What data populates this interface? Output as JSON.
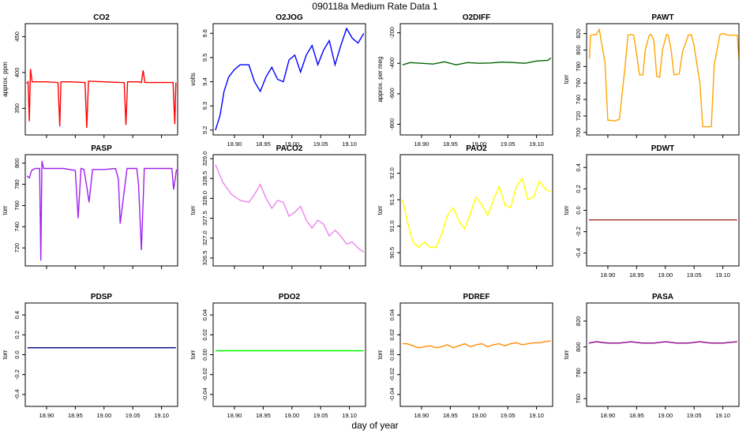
{
  "figure": {
    "title": "090118a   Medium Rate Data 1",
    "xlabel": "day of year"
  },
  "chart_data": [
    {
      "type": "line",
      "title": "CO2",
      "ylabel": "approx. ppm",
      "color": "#ff0000",
      "xlim": [
        18.863,
        19.128
      ],
      "ylim": [
        313,
        468
      ],
      "yticks": [
        350,
        400,
        450
      ],
      "xticks": [],
      "series": {
        "x": [
          18.865,
          18.868,
          18.87,
          18.872,
          18.875,
          18.9,
          18.92,
          18.923,
          18.925,
          18.94,
          18.967,
          18.97,
          18.973,
          19.0,
          19.03,
          19.035,
          19.038,
          19.041,
          19.06,
          19.065,
          19.068,
          19.071,
          19.09,
          19.12,
          19.123,
          19.125
        ],
        "y": [
          385,
          387,
          332,
          405,
          387,
          387,
          386,
          325,
          387,
          387,
          386,
          323,
          388,
          387,
          386,
          386,
          327,
          387,
          387,
          386,
          403,
          386,
          386,
          386,
          328,
          386
        ]
      }
    },
    {
      "type": "line",
      "title": "O2JOG",
      "ylabel": "volts",
      "color": "#0000ff",
      "xlim": [
        18.863,
        19.128
      ],
      "ylim": [
        9.18,
        9.64
      ],
      "yticks": [
        9.2,
        9.3,
        9.4,
        9.5,
        9.6
      ],
      "xticks": [
        18.9,
        18.95,
        19.0,
        19.05,
        19.1
      ],
      "series": {
        "x": [
          18.867,
          18.875,
          18.882,
          18.89,
          18.9,
          18.91,
          18.925,
          18.935,
          18.945,
          18.955,
          18.965,
          18.975,
          18.985,
          18.995,
          19.005,
          19.015,
          19.025,
          19.035,
          19.045,
          19.055,
          19.065,
          19.075,
          19.085,
          19.095,
          19.105,
          19.115,
          19.125
        ],
        "y": [
          9.2,
          9.26,
          9.36,
          9.42,
          9.45,
          9.47,
          9.47,
          9.4,
          9.36,
          9.42,
          9.46,
          9.41,
          9.4,
          9.49,
          9.51,
          9.44,
          9.51,
          9.55,
          9.47,
          9.53,
          9.57,
          9.47,
          9.55,
          9.62,
          9.58,
          9.56,
          9.6
        ]
      }
    },
    {
      "type": "line",
      "title": "O2DIFF",
      "ylabel": "approx. per meg",
      "color": "#006400",
      "xlim": [
        18.863,
        19.128
      ],
      "ylim": [
        -870,
        -140
      ],
      "yticks": [
        -800,
        -600,
        -400,
        -200
      ],
      "xticks": [
        18.9,
        18.95,
        19.0,
        19.05,
        19.1
      ],
      "series": {
        "x": [
          18.867,
          18.88,
          18.9,
          18.92,
          18.94,
          18.96,
          18.98,
          19.0,
          19.02,
          19.04,
          19.06,
          19.08,
          19.1,
          19.12,
          19.125
        ],
        "y": [
          -410,
          -395,
          -400,
          -405,
          -390,
          -410,
          -395,
          -400,
          -398,
          -392,
          -395,
          -400,
          -385,
          -380,
          -365
        ]
      }
    },
    {
      "type": "line",
      "title": "PAWT",
      "ylabel": "torr",
      "color": "#ffa500",
      "xlim": [
        18.863,
        19.128
      ],
      "ylim": [
        697,
        832
      ],
      "yticks": [
        700,
        720,
        740,
        760,
        780,
        800,
        820
      ],
      "xticks": [],
      "series": {
        "x": [
          18.868,
          18.87,
          18.88,
          18.885,
          18.895,
          18.9,
          18.912,
          18.92,
          18.93,
          18.935,
          18.941,
          18.945,
          18.95,
          18.955,
          18.961,
          18.965,
          18.972,
          18.975,
          18.98,
          18.985,
          18.99,
          18.995,
          19.002,
          19.005,
          19.01,
          19.015,
          19.024,
          19.03,
          19.04,
          19.045,
          19.05,
          19.06,
          19.065,
          19.08,
          19.085,
          19.095,
          19.1,
          19.11,
          19.125,
          19.128
        ],
        "y": [
          790,
          818,
          819,
          825,
          785,
          715,
          714,
          716,
          780,
          818,
          819,
          818,
          795,
          770,
          770,
          800,
          818,
          819,
          812,
          768,
          767,
          800,
          819,
          818,
          800,
          770,
          771,
          798,
          818,
          819,
          805,
          760,
          707,
          707,
          782,
          819,
          820,
          818,
          818,
          790
        ]
      }
    },
    {
      "type": "line",
      "title": "PASP",
      "ylabel": "torr",
      "color": "#a020f0",
      "xlim": [
        18.863,
        19.128
      ],
      "ylim": [
        703,
        808
      ],
      "yticks": [
        720,
        740,
        760,
        780,
        800
      ],
      "xticks": [],
      "series": {
        "x": [
          18.866,
          18.87,
          18.874,
          18.88,
          18.888,
          18.89,
          18.892,
          18.895,
          18.93,
          18.94,
          18.95,
          18.955,
          18.96,
          18.965,
          18.97,
          18.974,
          18.98,
          19.0,
          19.02,
          19.025,
          19.028,
          19.04,
          19.057,
          19.06,
          19.065,
          19.07,
          19.08,
          19.1,
          19.118,
          19.121,
          19.124,
          19.126
        ],
        "y": [
          788,
          786,
          793,
          795,
          795,
          708,
          802,
          795,
          795,
          794,
          793,
          748,
          795,
          794,
          778,
          763,
          794,
          794,
          795,
          785,
          743,
          795,
          795,
          780,
          718,
          795,
          795,
          795,
          795,
          775,
          786,
          794
        ]
      }
    },
    {
      "type": "line",
      "title": "PACO2",
      "ylabel": "torr",
      "color": "#ee82ee",
      "xlim": [
        18.863,
        19.128
      ],
      "ylim": [
        326.3,
        329.1
      ],
      "yticks": [
        326.5,
        327.0,
        327.5,
        328.0,
        328.5,
        329.0
      ],
      "xticks": [],
      "series": {
        "x": [
          18.867,
          18.88,
          18.895,
          18.91,
          18.925,
          18.935,
          18.945,
          18.955,
          18.965,
          18.975,
          18.985,
          18.995,
          19.005,
          19.015,
          19.025,
          19.035,
          19.045,
          19.055,
          19.065,
          19.075,
          19.085,
          19.095,
          19.105,
          19.115,
          19.125
        ],
        "y": [
          328.85,
          328.4,
          328.1,
          327.95,
          327.9,
          328.1,
          328.35,
          328.0,
          327.75,
          327.95,
          327.9,
          327.55,
          327.65,
          327.8,
          327.45,
          327.25,
          327.45,
          327.35,
          327.05,
          327.2,
          327.05,
          326.85,
          326.9,
          326.75,
          326.65
        ]
      }
    },
    {
      "type": "line",
      "title": "PAO2",
      "ylabel": "torr",
      "color": "#ffff00",
      "xlim": [
        18.863,
        19.128
      ],
      "ylim": [
        90.25,
        92.35
      ],
      "yticks": [
        90.5,
        91.0,
        91.5,
        92.0
      ],
      "xticks": [],
      "series": {
        "x": [
          18.867,
          18.875,
          18.885,
          18.895,
          18.905,
          18.915,
          18.925,
          18.935,
          18.945,
          18.955,
          18.965,
          18.975,
          18.985,
          18.995,
          19.005,
          19.015,
          19.025,
          19.035,
          19.045,
          19.055,
          19.065,
          19.075,
          19.085,
          19.095,
          19.105,
          19.115,
          19.125
        ],
        "y": [
          91.5,
          91.1,
          90.7,
          90.6,
          90.7,
          90.6,
          90.6,
          90.85,
          91.2,
          91.35,
          91.1,
          90.95,
          91.25,
          91.55,
          91.4,
          91.2,
          91.5,
          91.75,
          91.4,
          91.35,
          91.75,
          91.9,
          91.5,
          91.55,
          91.85,
          91.7,
          91.65
        ]
      }
    },
    {
      "type": "line",
      "title": "PDWT",
      "ylabel": "torr",
      "color": "#a52a2a",
      "xlim": [
        18.863,
        19.128
      ],
      "ylim": [
        -0.52,
        0.52
      ],
      "yticks": [
        -0.4,
        -0.2,
        0.0,
        0.2,
        0.4
      ],
      "xticks": [
        18.9,
        18.95,
        19.0,
        19.05,
        19.1
      ],
      "series": {
        "x": [
          18.867,
          19.125
        ],
        "y": [
          -0.09,
          -0.09
        ]
      }
    },
    {
      "type": "line",
      "title": "PDSP",
      "ylabel": "torr",
      "color": "#000080",
      "xlim": [
        18.863,
        19.128
      ],
      "ylim": [
        -0.52,
        0.52
      ],
      "yticks": [
        -0.4,
        -0.2,
        0.0,
        0.2,
        0.4
      ],
      "xticks": [
        18.9,
        18.95,
        19.0,
        19.05,
        19.1
      ],
      "series": {
        "x": [
          18.867,
          19.125
        ],
        "y": [
          0.07,
          0.07
        ]
      }
    },
    {
      "type": "line",
      "title": "PDO2",
      "ylabel": "torr",
      "color": "#00ff00",
      "xlim": [
        18.863,
        19.128
      ],
      "ylim": [
        -0.052,
        0.052
      ],
      "yticks": [
        -0.04,
        -0.02,
        0.0,
        0.02,
        0.04
      ],
      "xticks": [
        18.9,
        18.95,
        19.0,
        19.05,
        19.1
      ],
      "series": {
        "x": [
          18.867,
          19.125
        ],
        "y": [
          0.004,
          0.004
        ]
      }
    },
    {
      "type": "line",
      "title": "PDREF",
      "ylabel": "torr",
      "color": "#ff8c00",
      "xlim": [
        18.863,
        19.128
      ],
      "ylim": [
        -0.052,
        0.052
      ],
      "yticks": [
        -0.04,
        -0.02,
        0.0,
        0.02,
        0.04
      ],
      "xticks": [
        18.9,
        18.95,
        19.0,
        19.05,
        19.1
      ],
      "series": {
        "x": [
          18.867,
          18.875,
          18.885,
          18.895,
          18.905,
          18.915,
          18.925,
          18.935,
          18.945,
          18.955,
          18.965,
          18.975,
          18.985,
          18.995,
          19.005,
          19.015,
          19.025,
          19.035,
          19.045,
          19.055,
          19.065,
          19.075,
          19.085,
          19.095,
          19.105,
          19.115,
          19.125
        ],
        "y": [
          0.011,
          0.011,
          0.009,
          0.007,
          0.008,
          0.009,
          0.007,
          0.008,
          0.01,
          0.007,
          0.009,
          0.011,
          0.008,
          0.01,
          0.011,
          0.008,
          0.01,
          0.011,
          0.009,
          0.011,
          0.012,
          0.01,
          0.011,
          0.012,
          0.012,
          0.013,
          0.014
        ]
      }
    },
    {
      "type": "line",
      "title": "PASA",
      "ylabel": "torr",
      "color": "#8b008b",
      "xlim": [
        18.863,
        19.128
      ],
      "ylim": [
        754,
        834
      ],
      "yticks": [
        760,
        780,
        800,
        820
      ],
      "xticks": [
        18.9,
        18.95,
        19.0,
        19.05,
        19.1
      ],
      "series": {
        "x": [
          18.867,
          18.88,
          18.9,
          18.92,
          18.94,
          18.96,
          18.98,
          19.0,
          19.02,
          19.04,
          19.06,
          19.08,
          19.1,
          19.125
        ],
        "y": [
          803,
          804,
          803,
          803,
          804,
          803,
          803,
          804,
          803,
          803,
          804,
          803,
          803,
          804
        ]
      }
    }
  ]
}
